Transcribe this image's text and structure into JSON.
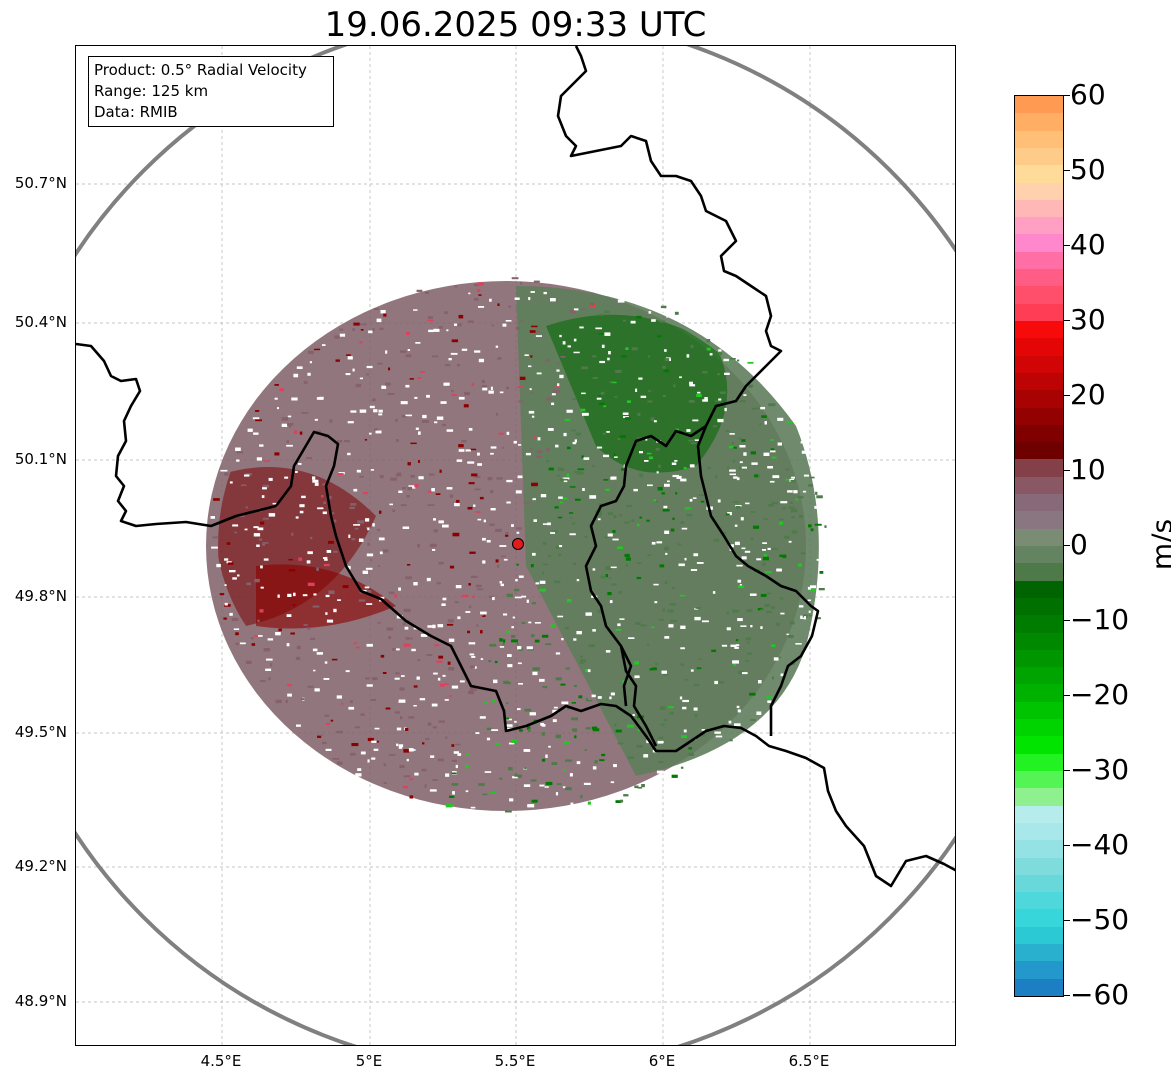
{
  "title": "19.06.2025 09:33 UTC",
  "info_box": {
    "product": "Product: 0.5° Radial Velocity",
    "range": "Range: 125 km",
    "data": "Data: RMIB"
  },
  "map": {
    "lat_ticks": [
      "50.7°N",
      "50.4°N",
      "50.1°N",
      "49.8°N",
      "49.5°N",
      "49.2°N",
      "48.9°N"
    ],
    "lon_ticks": [
      "4.5°E",
      "5°E",
      "5.5°E",
      "6°E",
      "6.5°E"
    ],
    "radar_site": {
      "lon": 5.505,
      "lat": 49.914
    },
    "range_ring_color": "#808080",
    "border_color": "#000000",
    "site_marker_color": "#e21b1b"
  },
  "colorbar": {
    "unit": "m/s",
    "ticks": [
      "60",
      "50",
      "40",
      "30",
      "20",
      "10",
      "0",
      "−10",
      "−20",
      "−30",
      "−40",
      "−50",
      "−60"
    ],
    "vmin": -60,
    "vmax": 60,
    "colors_top_to_bottom": [
      "#ff9a52",
      "#ffae63",
      "#ffbf77",
      "#ffcb88",
      "#ffdb9a",
      "#ffd1ac",
      "#ffb8b6",
      "#ff9fc3",
      "#ff88cc",
      "#ff6fa6",
      "#ff5d86",
      "#ff4f6a",
      "#ff3e55",
      "#f60a0a",
      "#e40606",
      "#d10505",
      "#bd0303",
      "#a80202",
      "#940101",
      "#800000",
      "#6e0000",
      "#834049",
      "#8a5864",
      "#87697a",
      "#897680",
      "#7a8c74",
      "#648461",
      "#4d7a48",
      "#006400",
      "#007000",
      "#007c00",
      "#008800",
      "#009600",
      "#00a400",
      "#00b200",
      "#00c400",
      "#00d400",
      "#00e400",
      "#22f222",
      "#55f455",
      "#8ff08f",
      "#b7ecec",
      "#a9e8ea",
      "#94e2e4",
      "#7edcdc",
      "#68d8da",
      "#4fd8dc",
      "#37d6da",
      "#2bc9d4",
      "#2ab0cf",
      "#2398cb",
      "#1c7fc4"
    ]
  }
}
